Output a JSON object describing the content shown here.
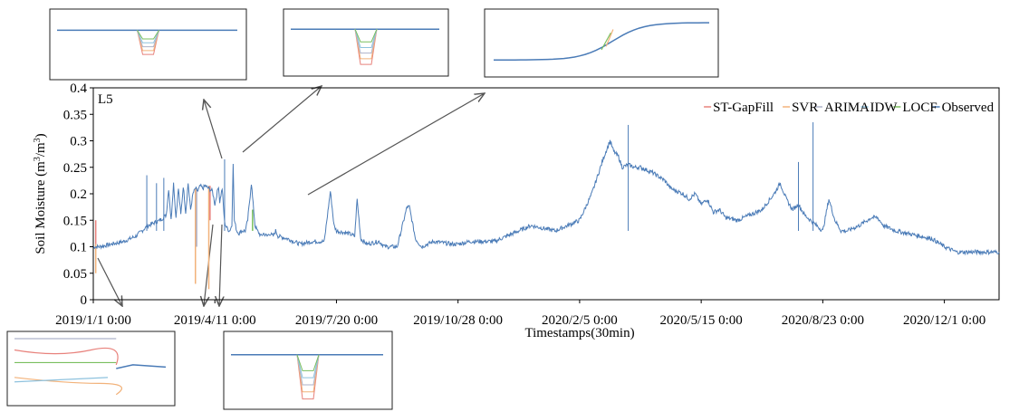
{
  "chart_data": {
    "type": "line",
    "panel_label": "L5",
    "title": "",
    "xlabel": "Timestamps(30min)",
    "ylabel": {
      "main": "Soil Moisture (m",
      "sup1": "3",
      "mid": "/m",
      "sup2": "3",
      "end": ")"
    },
    "ylim": [
      0,
      0.4
    ],
    "y_ticks": [
      "0",
      "0.05",
      "0.1",
      "0.15",
      "0.2",
      "0.25",
      "0.3",
      "0.35",
      "0.4"
    ],
    "x_ticks": [
      "2019/1/1 0:00",
      "2019/4/11 0:00",
      "2019/7/20 0:00",
      "2019/10/28 0:00",
      "2020/2/5 0:00",
      "2020/5/15 0:00",
      "2020/8/23 0:00",
      "2020/12/1 0:00"
    ],
    "x_tick_days": [
      0,
      100,
      200,
      300,
      400,
      500,
      600,
      700
    ],
    "x_range_days": [
      0,
      745
    ],
    "grid": false,
    "legend_position": "top-right",
    "legend": [
      {
        "name": "ST-GapFill",
        "color": "#e8827c"
      },
      {
        "name": "SVR",
        "color": "#f2b27a"
      },
      {
        "name": "ARIMA",
        "color": "#aeb2c9"
      },
      {
        "name": "IDW",
        "color": "#8ec2de"
      },
      {
        "name": "LOCF",
        "color": "#7abf5e"
      },
      {
        "name": "Observed",
        "color": "#4a7bb7"
      }
    ],
    "observed_series": {
      "name": "Observed",
      "x_days": [
        0,
        5,
        15,
        25,
        35,
        40,
        45,
        50,
        55,
        60,
        62,
        64,
        66,
        68,
        70,
        72,
        74,
        76,
        78,
        80,
        82,
        84,
        86,
        88,
        90,
        92,
        95,
        98,
        100,
        103,
        104,
        106,
        108,
        110,
        112,
        114,
        115,
        116,
        117,
        118,
        120,
        122,
        125,
        127,
        130,
        133,
        135,
        138,
        140,
        143,
        145,
        148,
        150,
        152,
        160,
        170,
        180,
        190,
        195,
        198,
        200,
        210,
        215,
        217,
        220,
        225,
        235,
        240,
        250,
        258,
        260,
        265,
        270,
        280,
        295,
        300,
        310,
        315,
        320,
        330,
        340,
        360,
        380,
        400,
        410,
        420,
        425,
        428,
        432,
        435,
        440,
        445,
        450,
        460,
        470,
        475,
        480,
        485,
        490,
        495,
        500,
        505,
        510,
        515,
        520,
        530,
        540,
        550,
        560,
        565,
        570,
        575,
        580,
        585,
        590,
        595,
        600,
        605,
        610,
        615,
        620,
        630,
        640,
        645,
        650,
        660,
        670,
        680,
        690,
        700,
        705,
        710,
        720,
        730,
        745
      ],
      "y": [
        0.1,
        0.1,
        0.105,
        0.11,
        0.12,
        0.13,
        0.14,
        0.145,
        0.15,
        0.16,
        0.21,
        0.15,
        0.22,
        0.155,
        0.21,
        0.16,
        0.215,
        0.165,
        0.22,
        0.17,
        0.2,
        0.21,
        0.205,
        0.215,
        0.21,
        0.215,
        0.21,
        0.205,
        0.18,
        0.215,
        0.185,
        0.21,
        0.145,
        0.135,
        0.13,
        0.14,
        0.26,
        0.15,
        0.14,
        0.13,
        0.125,
        0.13,
        0.13,
        0.15,
        0.22,
        0.14,
        0.13,
        0.12,
        0.125,
        0.12,
        0.125,
        0.12,
        0.13,
        0.12,
        0.115,
        0.105,
        0.11,
        0.11,
        0.205,
        0.14,
        0.13,
        0.125,
        0.12,
        0.19,
        0.115,
        0.105,
        0.11,
        0.1,
        0.1,
        0.175,
        0.175,
        0.115,
        0.1,
        0.11,
        0.105,
        0.105,
        0.11,
        0.11,
        0.11,
        0.11,
        0.12,
        0.14,
        0.13,
        0.15,
        0.2,
        0.27,
        0.3,
        0.28,
        0.27,
        0.25,
        0.255,
        0.25,
        0.25,
        0.24,
        0.225,
        0.21,
        0.205,
        0.2,
        0.19,
        0.2,
        0.18,
        0.19,
        0.165,
        0.17,
        0.155,
        0.15,
        0.16,
        0.17,
        0.2,
        0.22,
        0.19,
        0.17,
        0.18,
        0.16,
        0.15,
        0.14,
        0.13,
        0.19,
        0.15,
        0.13,
        0.13,
        0.14,
        0.155,
        0.155,
        0.14,
        0.13,
        0.125,
        0.12,
        0.115,
        0.1,
        0.095,
        0.09,
        0.09,
        0.09,
        0.09
      ]
    },
    "spikes": [
      {
        "x_day": 44,
        "y": 0.235,
        "color": "#4a7bb7"
      },
      {
        "x_day": 52,
        "y": 0.22,
        "color": "#4a7bb7"
      },
      {
        "x_day": 58,
        "y": 0.23,
        "color": "#4a7bb7"
      },
      {
        "x_day": 108,
        "y": 0.265,
        "color": "#4a7bb7"
      },
      {
        "x_day": 440,
        "y": 0.33,
        "color": "#4a7bb7"
      },
      {
        "x_day": 592,
        "y": 0.335,
        "color": "#4a7bb7"
      },
      {
        "x_day": 580,
        "y": 0.26,
        "color": "#4a7bb7"
      }
    ],
    "gap_drops": [
      {
        "x_day": 2,
        "y_top": 0.105,
        "y_bottom": 0.15,
        "color": "#e8827c"
      },
      {
        "x_day": 2,
        "y_top": 0.105,
        "y_bottom": 0.05,
        "color": "#f2b27a"
      },
      {
        "x_day": 84,
        "y_top": 0.21,
        "y_bottom": 0.03,
        "color": "#f2b27a"
      },
      {
        "x_day": 85,
        "y_top": 0.21,
        "y_bottom": 0.1,
        "color": "#aeb2c9"
      },
      {
        "x_day": 95,
        "y_top": 0.215,
        "y_bottom": 0.02,
        "color": "#f2b27a"
      },
      {
        "x_day": 96,
        "y_top": 0.215,
        "y_bottom": 0.15,
        "color": "#e8827c"
      },
      {
        "x_day": 131,
        "y_top": 0.17,
        "y_bottom": 0.13,
        "color": "#7abf5e"
      }
    ],
    "insets": [
      {
        "name": "inset-1",
        "kind": "drop",
        "drop_depth": 0.55
      },
      {
        "name": "inset-2",
        "kind": "multi-drop",
        "drop_depth": 0.85
      },
      {
        "name": "inset-3",
        "kind": "step-up",
        "drop_depth": 0
      },
      {
        "name": "inset-4",
        "kind": "curves",
        "drop_depth": 0.8
      },
      {
        "name": "inset-5",
        "kind": "multi-drop",
        "drop_depth": 0.9
      }
    ]
  }
}
